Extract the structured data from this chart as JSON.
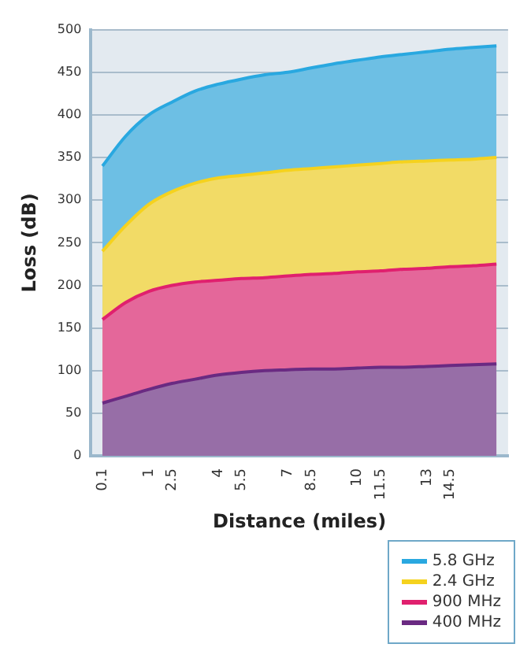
{
  "chart_data": {
    "type": "area",
    "xlabel": "Distance (miles)",
    "ylabel": "Loss (dB)",
    "categories": [
      "0.1",
      null,
      "1",
      "2.5",
      null,
      "4",
      "5.5",
      null,
      "7",
      "8.5",
      null,
      "10",
      "11.5",
      null,
      "13",
      "14.5",
      null,
      null
    ],
    "series": [
      {
        "name": "5.8 GHz",
        "color": "#29a8e0",
        "values": [
          340,
          375,
          400,
          415,
          428,
          436,
          442,
          447,
          450,
          455,
          460,
          464,
          468,
          471,
          474,
          477,
          479,
          481
        ]
      },
      {
        "name": "2.4 GHz",
        "color": "#f5d21e",
        "values": [
          240,
          270,
          295,
          310,
          320,
          326,
          329,
          332,
          335,
          337,
          339,
          341,
          343,
          345,
          346,
          347,
          348,
          350
        ]
      },
      {
        "name": "900 MHz",
        "color": "#e0206e",
        "values": [
          160,
          180,
          193,
          200,
          204,
          206,
          208,
          209,
          211,
          213,
          214,
          216,
          217,
          219,
          220,
          222,
          223,
          225
        ]
      },
      {
        "name": "400 MHz",
        "color": "#6a2a82",
        "values": [
          62,
          70,
          78,
          85,
          90,
          95,
          98,
          100,
          101,
          102,
          102,
          103,
          104,
          104,
          105,
          106,
          107,
          108
        ]
      }
    ],
    "ylim": [
      0,
      500
    ],
    "yticks": [
      0,
      50,
      100,
      150,
      200,
      250,
      300,
      350,
      400,
      450,
      500
    ],
    "grid": "y",
    "legend": "bottom right",
    "marker": "none",
    "line_style": "solid"
  }
}
